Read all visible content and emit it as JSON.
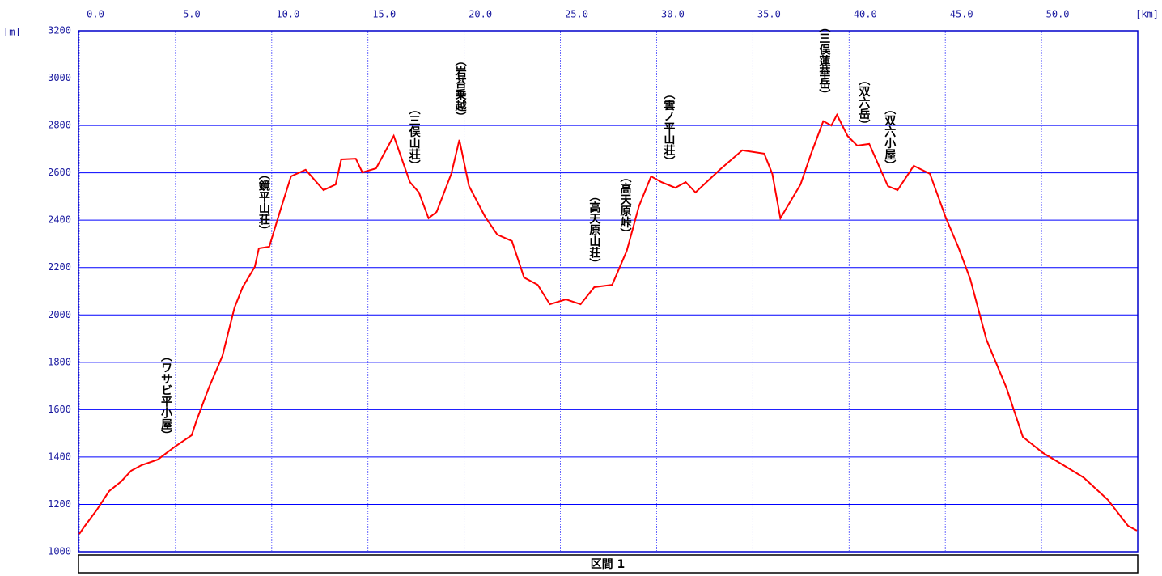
{
  "chart_data": {
    "type": "line",
    "x_label": "[km]",
    "y_label": "[m]",
    "xlim": [
      0,
      55
    ],
    "ylim": [
      1000,
      3200
    ],
    "xticks": [
      {
        "value": 0,
        "label": "0.0"
      },
      {
        "value": 5,
        "label": "5.0"
      },
      {
        "value": 10,
        "label": "10.0"
      },
      {
        "value": 15,
        "label": "15.0"
      },
      {
        "value": 20,
        "label": "20.0"
      },
      {
        "value": 25,
        "label": "25.0"
      },
      {
        "value": 30,
        "label": "30.0"
      },
      {
        "value": 35,
        "label": "35.0"
      },
      {
        "value": 40,
        "label": "40.0"
      },
      {
        "value": 45,
        "label": "45.0"
      },
      {
        "value": 50,
        "label": "50.0"
      }
    ],
    "yticks": [
      1000,
      1200,
      1400,
      1600,
      1800,
      2000,
      2200,
      2400,
      2600,
      2800,
      3000,
      3200
    ],
    "grid": true,
    "series": [
      {
        "color": "#ff0000",
        "x": [
          0,
          0.29,
          0.92,
          1.55,
          2.18,
          2.69,
          3.24,
          4.08,
          4.92,
          5.84,
          6.09,
          6.72,
          7.44,
          8.07,
          8.49,
          9.12,
          9.33,
          9.87,
          10.38,
          11.0,
          11.76,
          12.69,
          13.32,
          13.61,
          14.37,
          14.71,
          15.42,
          16.34,
          17.18,
          17.65,
          18.15,
          18.57,
          19.33,
          19.75,
          20.25,
          21.09,
          21.72,
          22.48,
          23.11,
          23.82,
          24.45,
          25.29,
          26.05,
          26.76,
          27.69,
          28.45,
          29.08,
          29.71,
          30.25,
          30.97,
          31.51,
          32.02,
          33.28,
          34.45,
          35.59,
          36.01,
          36.43,
          37.48,
          38.03,
          38.66,
          39.08,
          39.37,
          39.92,
          40.42,
          41.05,
          41.68,
          42.02,
          42.52,
          43.36,
          44.2,
          45.04,
          45.67,
          46.3,
          47.14,
          48.19,
          49.03,
          50.08,
          51.13,
          52.18,
          53.45,
          54.5,
          54.96
        ],
        "values": [
          1075,
          1109,
          1178,
          1256,
          1297,
          1342,
          1366,
          1389,
          1441,
          1492,
          1553,
          1690,
          1827,
          2032,
          2117,
          2203,
          2281,
          2288,
          2425,
          2585,
          2613,
          2527,
          2551,
          2657,
          2660,
          2602,
          2619,
          2756,
          2561,
          2517,
          2408,
          2435,
          2596,
          2739,
          2544,
          2414,
          2339,
          2312,
          2158,
          2127,
          2045,
          2066,
          2045,
          2117,
          2127,
          2271,
          2459,
          2585,
          2561,
          2537,
          2561,
          2517,
          2613,
          2695,
          2681,
          2596,
          2408,
          2551,
          2681,
          2818,
          2800,
          2845,
          2756,
          2715,
          2722,
          2606,
          2544,
          2527,
          2630,
          2596,
          2408,
          2288,
          2151,
          1895,
          1690,
          1485,
          1417,
          1366,
          1314,
          1219,
          1109,
          1089
        ]
      }
    ],
    "annotations": [
      {
        "text": "（ワサビ平小屋）",
        "x": 4.5,
        "y": 1468
      },
      {
        "text": "（鏡平山荘）",
        "x": 9.58,
        "y": 2332
      },
      {
        "text": "（三俣山荘）",
        "x": 17.39,
        "y": 2606
      },
      {
        "text": "（岩苔乗越）",
        "x": 19.79,
        "y": 2811
      },
      {
        "text": "（高天原山荘）",
        "x": 26.76,
        "y": 2192
      },
      {
        "text": "（高天原峠）",
        "x": 28.36,
        "y": 2319
      },
      {
        "text": "（雲ノ平山荘）",
        "x": 30.63,
        "y": 2623
      },
      {
        "text": "（三俣蓮華岳）",
        "x": 38.7,
        "y": 2906
      },
      {
        "text": "（双六岳）",
        "x": 40.76,
        "y": 2777
      },
      {
        "text": "（双六小屋）",
        "x": 42.1,
        "y": 2606
      }
    ]
  },
  "footer": {
    "label": "区間 1"
  }
}
